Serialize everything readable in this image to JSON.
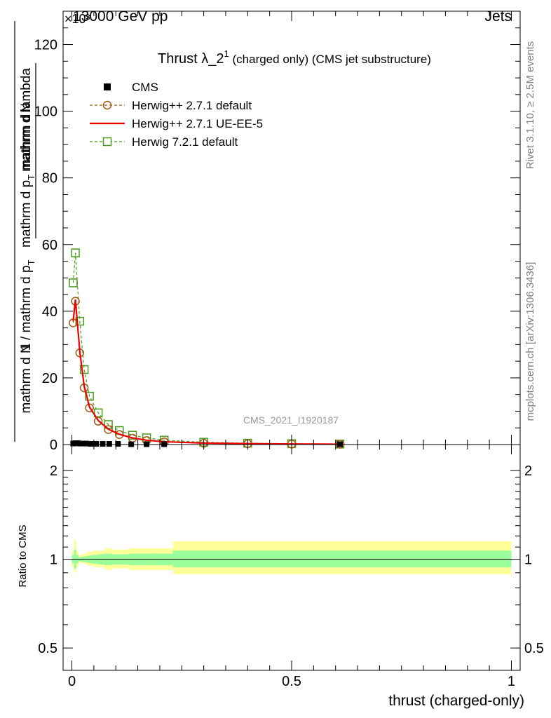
{
  "header": {
    "energy": "13000 GeV pp",
    "label": "Jets",
    "exponent": "×10³"
  },
  "side_text": {
    "rivet": "Rivet 3.1.10, ≥ 2.5M events",
    "mcplots": "mcplots.cern.ch [arXiv:1306.3436]"
  },
  "watermark": "CMS_2021_I1920187",
  "colors": {
    "cms": "#000000",
    "herwig_pp_default": "#a05a12",
    "herwig_pp_ueee5": "#ee0000",
    "herwig_7_default": "#4a9a1e",
    "band_yellow": "#ffff99",
    "band_green": "#99ff99"
  },
  "chart_data": [
    {
      "type": "line",
      "title": "Thrust λ_2¹ (charged only) (CMS jet substructure)",
      "title_main": "Thrust λ_2",
      "title_sup": "1",
      "title_rest": "(charged only) (CMS jet substructure)",
      "ylabel_parts": [
        "1",
        "mathrm dN",
        "mathrm d N / mathrm d p",
        "mathrm d p",
        "mathrm d lambda"
      ],
      "ylabel_line1": "mathrm d N / mathrm d p",
      "ylabel_line1_sub": "T",
      "ylabel_line2": "mathrm d p",
      "ylabel_line2_sub": "T",
      "ylabel_line2_rest": "mathrm d lambda",
      "ylabel_numerator": "1",
      "ylabel_num2": "mathrm d",
      "ylabel_num3": "N",
      "ylim": [
        0,
        130
      ],
      "xlim": [
        -0.02,
        1.02
      ],
      "yticks": [
        0,
        20,
        40,
        60,
        80,
        100,
        120
      ],
      "grid": false,
      "legend_position": "top-left",
      "series": [
        {
          "name": "CMS",
          "style": "square-markers",
          "x": [
            0.003,
            0.008,
            0.013,
            0.018,
            0.025,
            0.033,
            0.043,
            0.055,
            0.07,
            0.085,
            0.105,
            0.135,
            0.17,
            0.21,
            0.61
          ],
          "y": [
            0.3,
            0.4,
            0.4,
            0.3,
            0.3,
            0.3,
            0.2,
            0.2,
            0.2,
            0.2,
            0.2,
            0.1,
            0.1,
            0.1,
            0.1
          ]
        },
        {
          "name": "Herwig++ 2.7.1 default",
          "style": "dashed-circles",
          "x": [
            0.003,
            0.008,
            0.018,
            0.028,
            0.04,
            0.06,
            0.083,
            0.108,
            0.138,
            0.17,
            0.21,
            0.3,
            0.4,
            0.5,
            0.61
          ],
          "y": [
            36.5,
            43,
            27.5,
            17,
            11,
            7,
            4.5,
            3,
            1.9,
            1.2,
            0.8,
            0.4,
            0.25,
            0.15,
            0.1
          ]
        },
        {
          "name": "Herwig++ 2.7.1 UE-EE-5",
          "style": "solid-line",
          "x": [
            0.003,
            0.008,
            0.018,
            0.028,
            0.04,
            0.06,
            0.083,
            0.108,
            0.138,
            0.17,
            0.21,
            0.3,
            0.4,
            0.5,
            0.61
          ],
          "y": [
            37,
            43.5,
            28,
            17.5,
            11.3,
            7.2,
            4.6,
            3.1,
            2,
            1.3,
            0.85,
            0.45,
            0.28,
            0.17,
            0.1
          ]
        },
        {
          "name": "Herwig 7.2.1 default",
          "style": "dashed-squares",
          "x": [
            0.003,
            0.008,
            0.018,
            0.028,
            0.04,
            0.06,
            0.083,
            0.108,
            0.138,
            0.17,
            0.21,
            0.3,
            0.4,
            0.5,
            0.61
          ],
          "y": [
            48.5,
            57.5,
            37,
            22.5,
            14.5,
            9.5,
            6,
            4.2,
            2.8,
            2,
            1.3,
            0.7,
            0.4,
            0.25,
            0.15
          ]
        }
      ]
    },
    {
      "type": "area",
      "ylabel": "Ratio to CMS",
      "xlabel": "thrust (charged-only)",
      "xlim": [
        -0.02,
        1.02
      ],
      "ylim": [
        0.42,
        2.45
      ],
      "log_y": true,
      "yticks": [
        0.5,
        1,
        2
      ],
      "ytick_labels": [
        "0.5",
        "1",
        "2"
      ],
      "xticks": [
        0,
        0.5,
        1
      ],
      "xtick_labels": [
        "0",
        "0.5",
        "1"
      ],
      "reference": 1,
      "bands": {
        "edges": [
          0,
          0.005,
          0.01,
          0.015,
          0.02,
          0.03,
          0.037,
          0.048,
          0.06,
          0.075,
          0.09,
          0.115,
          0.13,
          0.15,
          0.19,
          0.23,
          1.0
        ],
        "yellow_lo": [
          0.94,
          0.9,
          0.94,
          0.97,
          0.97,
          0.96,
          0.95,
          0.94,
          0.94,
          0.92,
          0.93,
          0.93,
          0.92,
          0.92,
          0.92,
          0.89
        ],
        "yellow_hi": [
          1.07,
          1.16,
          1.07,
          1.03,
          1.04,
          1.05,
          1.06,
          1.07,
          1.07,
          1.09,
          1.08,
          1.08,
          1.09,
          1.09,
          1.09,
          1.15
        ],
        "green_lo": [
          0.97,
          0.93,
          0.97,
          0.985,
          0.98,
          0.975,
          0.97,
          0.965,
          0.96,
          0.955,
          0.96,
          0.96,
          0.955,
          0.955,
          0.955,
          0.94
        ],
        "green_hi": [
          1.035,
          1.08,
          1.035,
          1.015,
          1.02,
          1.025,
          1.03,
          1.035,
          1.04,
          1.045,
          1.04,
          1.04,
          1.045,
          1.045,
          1.045,
          1.07
        ]
      }
    }
  ]
}
